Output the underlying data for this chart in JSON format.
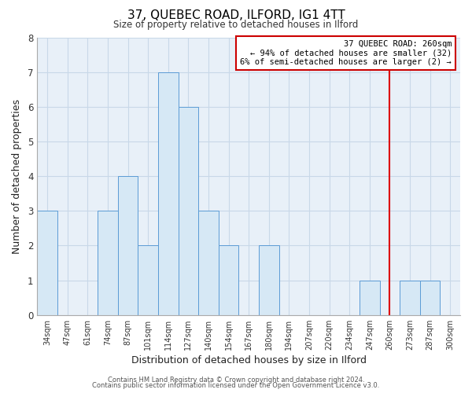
{
  "title": "37, QUEBEC ROAD, ILFORD, IG1 4TT",
  "subtitle": "Size of property relative to detached houses in Ilford",
  "xlabel": "Distribution of detached houses by size in Ilford",
  "ylabel": "Number of detached properties",
  "bar_color": "#d6e8f5",
  "bar_edge_color": "#5b9bd5",
  "categories": [
    "34sqm",
    "47sqm",
    "61sqm",
    "74sqm",
    "87sqm",
    "101sqm",
    "114sqm",
    "127sqm",
    "140sqm",
    "154sqm",
    "167sqm",
    "180sqm",
    "194sqm",
    "207sqm",
    "220sqm",
    "234sqm",
    "247sqm",
    "260sqm",
    "273sqm",
    "287sqm",
    "300sqm"
  ],
  "values": [
    3,
    0,
    0,
    3,
    4,
    2,
    7,
    6,
    3,
    2,
    0,
    2,
    0,
    0,
    0,
    0,
    1,
    0,
    1,
    1,
    0
  ],
  "ylim": [
    0,
    8
  ],
  "yticks": [
    0,
    1,
    2,
    3,
    4,
    5,
    6,
    7,
    8
  ],
  "red_line_index": 17,
  "annotation_text": "37 QUEBEC ROAD: 260sqm\n← 94% of detached houses are smaller (32)\n6% of semi-detached houses are larger (2) →",
  "annotation_box_facecolor": "#ffffff",
  "annotation_box_edge": "#cc0000",
  "red_line_color": "#dd0000",
  "grid_color": "#c8d8e8",
  "plot_bg_color": "#e8f0f8",
  "footer_line1": "Contains HM Land Registry data © Crown copyright and database right 2024.",
  "footer_line2": "Contains public sector information licensed under the Open Government Licence v3.0."
}
